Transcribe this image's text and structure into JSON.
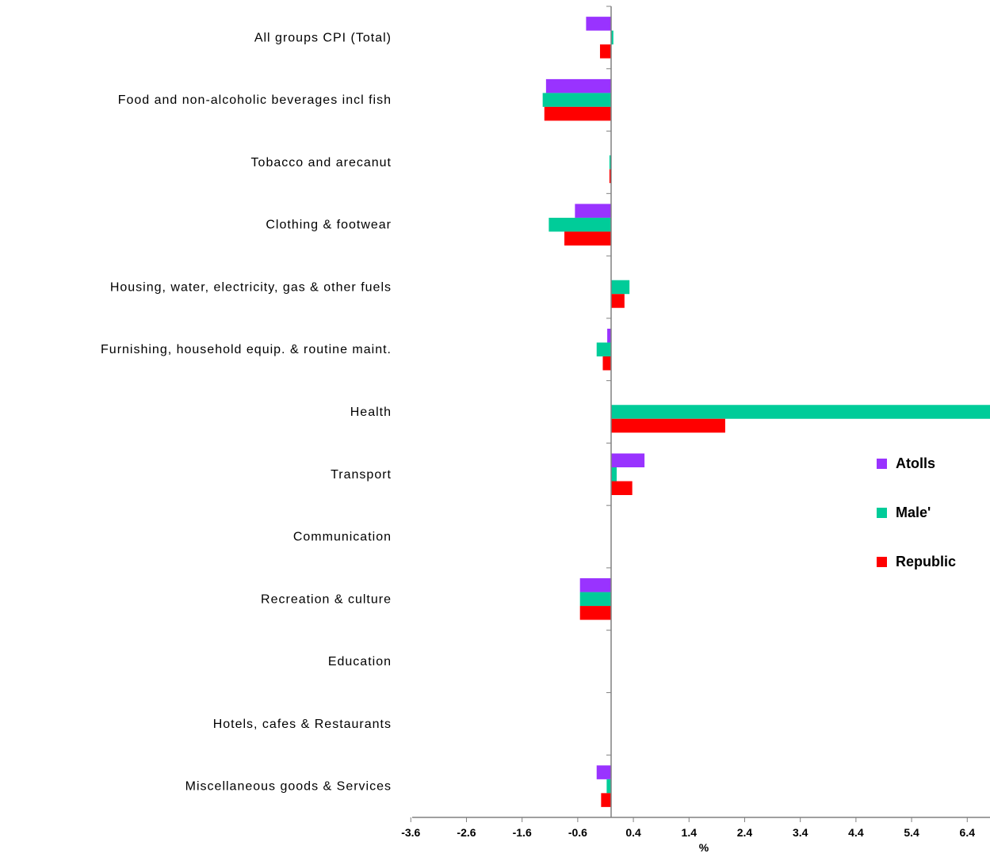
{
  "chart_data": {
    "type": "bar",
    "orientation": "horizontal",
    "title": "",
    "xlabel": "%",
    "ylabel": "",
    "xlim": [
      -3.6,
      6.8
    ],
    "x_ticks": [
      -3.6,
      -2.6,
      -1.6,
      -0.6,
      0.4,
      1.4,
      2.4,
      3.4,
      4.4,
      5.4,
      6.4
    ],
    "x_tick_labels": [
      "-3.6",
      "-2.6",
      "-1.6",
      "-0.6",
      "0.4",
      "1.4",
      "2.4",
      "3.4",
      "4.4",
      "5.4",
      "6.4"
    ],
    "grid": false,
    "legend_position": "right",
    "categories": [
      "All groups CPI (Total)",
      "Food and non-alcoholic beverages incl fish",
      "Tobacco and arecanut",
      "Clothing & footwear",
      "Housing, water, electricity, gas & other fuels",
      "Furnishing, household equip. & routine maint.",
      "Health",
      "Transport",
      "Communication",
      "Recreation & culture",
      "Education",
      "Hotels, cafes & Restaurants",
      "Miscellaneous goods & Services"
    ],
    "series": [
      {
        "name": "Atolls",
        "color": "#9933FF",
        "values": [
          -0.45,
          -1.17,
          0,
          -0.65,
          0,
          -0.07,
          0,
          0.6,
          0,
          -0.56,
          0,
          0,
          -0.26
        ]
      },
      {
        "name": "Male'",
        "color": "#00CC99",
        "values": [
          0.04,
          -1.23,
          -0.03,
          -1.12,
          0.33,
          -0.26,
          6.85,
          0.1,
          0,
          -0.56,
          0,
          0,
          -0.08
        ]
      },
      {
        "name": "Republic",
        "color": "#FF0000",
        "values": [
          -0.2,
          -1.2,
          -0.03,
          -0.84,
          0.24,
          -0.15,
          2.05,
          0.38,
          0,
          -0.56,
          0,
          0,
          -0.18
        ]
      }
    ]
  }
}
